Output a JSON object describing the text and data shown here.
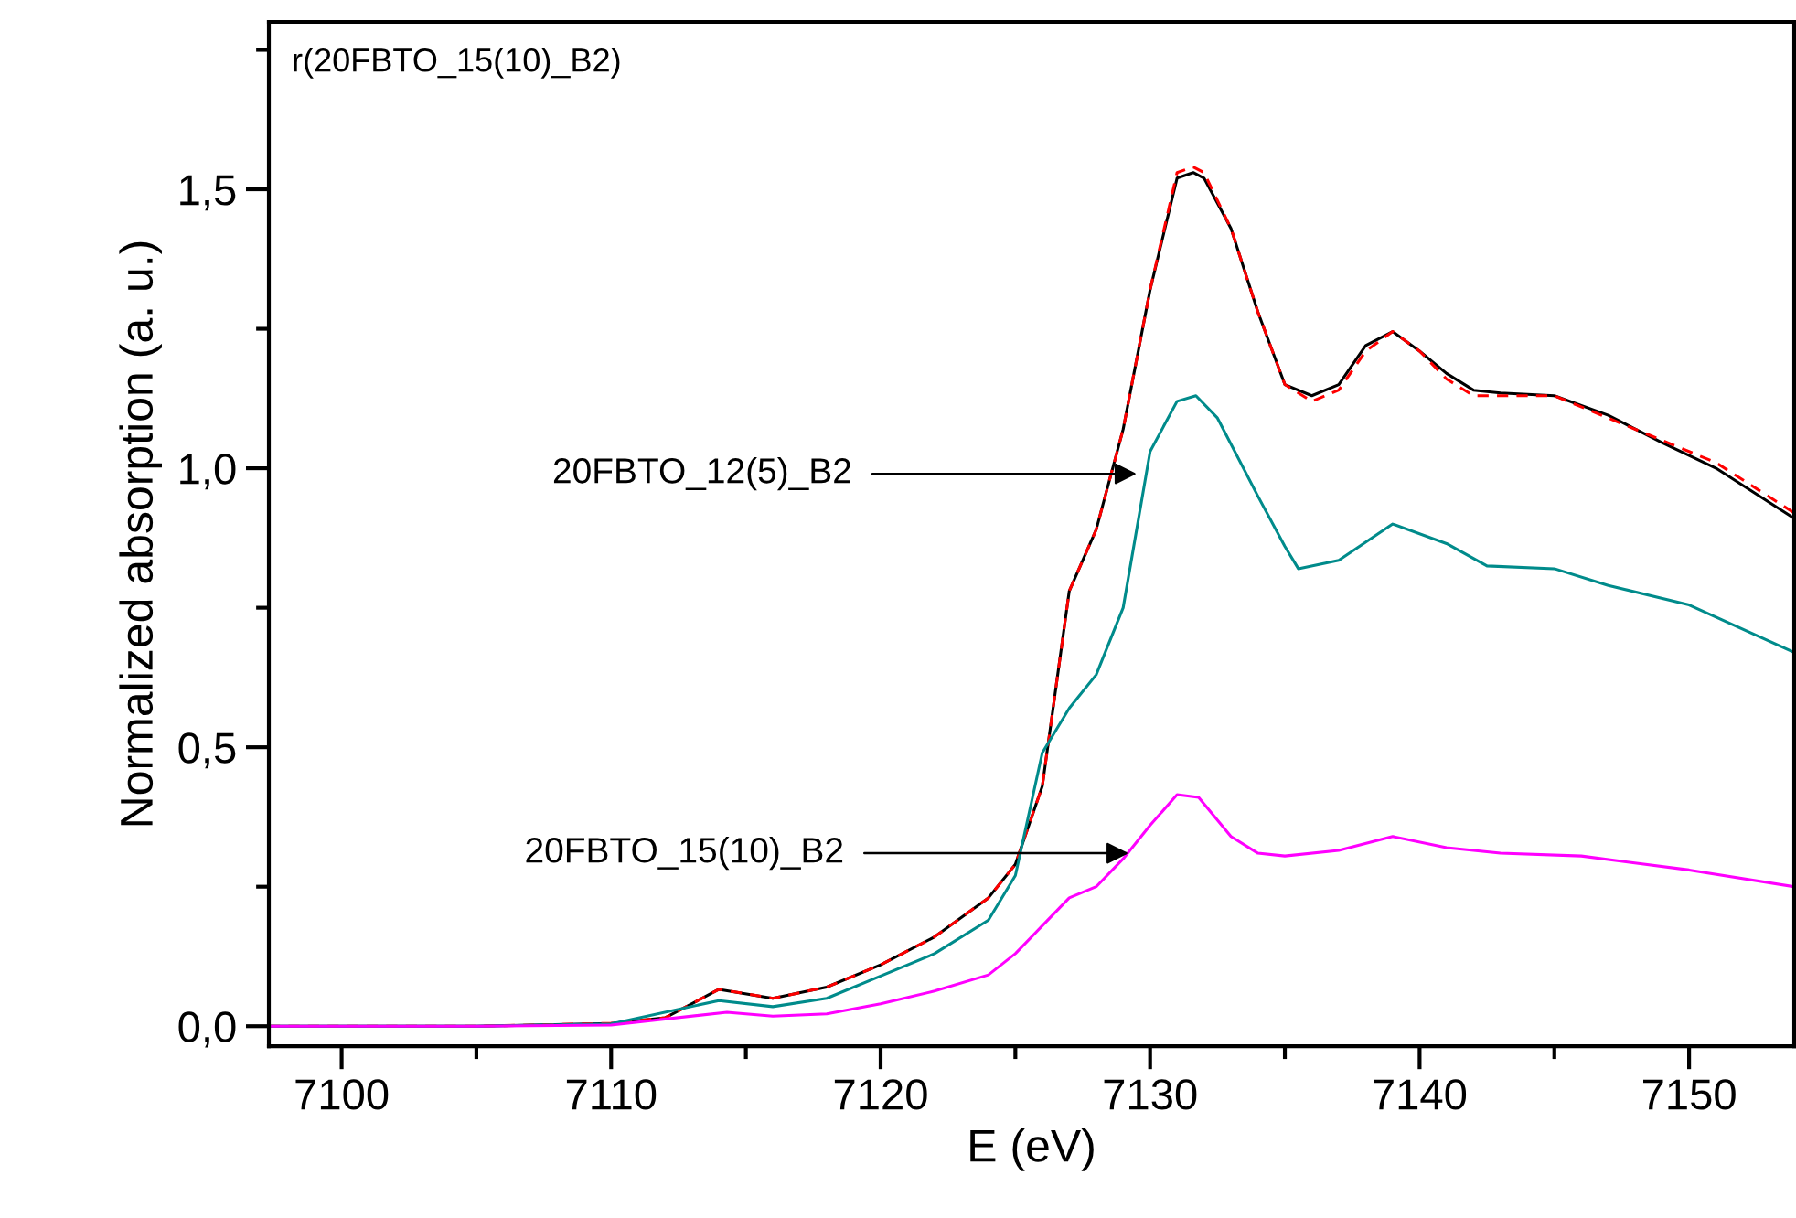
{
  "chart_data": {
    "type": "line",
    "xlabel": "E (eV)",
    "ylabel": "Normalized absorption (a. u.)",
    "xlim": [
      7097.3,
      7153.9
    ],
    "ylim": [
      -0.036,
      1.8
    ],
    "xticks": [
      7100,
      {
        "value": 7105,
        "label": null
      },
      7110,
      {
        "value": 7115,
        "label": null
      },
      7120,
      {
        "value": 7125,
        "label": null
      },
      7130,
      {
        "value": 7135,
        "label": null
      },
      7140,
      {
        "value": 7145,
        "label": null
      },
      7150
    ],
    "yticks": [
      {
        "value": 0,
        "label": "0,0"
      },
      {
        "value": 0.25,
        "label": null
      },
      {
        "value": 0.5,
        "label": "0,5"
      },
      {
        "value": 0.75,
        "label": null
      },
      {
        "value": 1.0,
        "label": "1,0"
      },
      {
        "value": 1.25,
        "label": null
      },
      {
        "value": 1.5,
        "label": "1,5"
      },
      {
        "value": 1.75,
        "label": null
      }
    ],
    "grid": false,
    "legend": false,
    "marker": "none",
    "series": [
      {
        "color": "#000000",
        "line_style": "solid",
        "x": [
          7097.3,
          7105,
          7110,
          7112,
          7114,
          7116,
          7118,
          7120,
          7122,
          7124,
          7125,
          7126,
          7127,
          7128,
          7129,
          7130,
          7131,
          7131.6,
          7132,
          7133,
          7134,
          7135,
          7136,
          7137,
          7138,
          7139,
          7140,
          7141,
          7142,
          7143,
          7145,
          7147,
          7149,
          7151,
          7153.9
        ],
        "values": [
          0.0,
          0.0,
          0.005,
          0.015,
          0.066,
          0.05,
          0.07,
          0.11,
          0.16,
          0.23,
          0.29,
          0.43,
          0.78,
          0.89,
          1.07,
          1.32,
          1.52,
          1.53,
          1.52,
          1.43,
          1.28,
          1.15,
          1.13,
          1.15,
          1.22,
          1.245,
          1.21,
          1.17,
          1.14,
          1.135,
          1.13,
          1.095,
          1.046,
          1.0,
          0.91
        ]
      },
      {
        "color": "#ff0000",
        "line_style": "dashed",
        "x": [
          7097.3,
          7105,
          7110,
          7112,
          7114,
          7116,
          7118,
          7120,
          7122,
          7124,
          7125,
          7126,
          7127,
          7128,
          7129,
          7130,
          7131,
          7131.6,
          7132,
          7133,
          7134,
          7135,
          7136,
          7137,
          7138,
          7139,
          7140,
          7141,
          7142,
          7143,
          7145,
          7147,
          7149,
          7151,
          7153.9
        ],
        "values": [
          0.0,
          0.0,
          0.005,
          0.015,
          0.066,
          0.05,
          0.07,
          0.11,
          0.16,
          0.23,
          0.29,
          0.43,
          0.78,
          0.89,
          1.07,
          1.32,
          1.53,
          1.54,
          1.53,
          1.43,
          1.28,
          1.15,
          1.12,
          1.14,
          1.21,
          1.245,
          1.21,
          1.16,
          1.13,
          1.13,
          1.13,
          1.09,
          1.05,
          1.01,
          0.92
        ]
      },
      {
        "color": "#008b8b",
        "line_style": "solid",
        "x": [
          7097.3,
          7105,
          7110,
          7114,
          7116,
          7118,
          7120,
          7122,
          7124,
          7125,
          7126,
          7127,
          7128,
          7129,
          7130,
          7131,
          7131.7,
          7132.5,
          7134,
          7135,
          7135.5,
          7137,
          7139,
          7141,
          7142.5,
          7145,
          7147,
          7150,
          7153.9
        ],
        "values": [
          0.0,
          0.0,
          0.004,
          0.046,
          0.035,
          0.05,
          0.09,
          0.13,
          0.19,
          0.27,
          0.49,
          0.57,
          0.63,
          0.75,
          1.03,
          1.12,
          1.13,
          1.09,
          0.95,
          0.86,
          0.82,
          0.835,
          0.9,
          0.865,
          0.825,
          0.82,
          0.79,
          0.755,
          0.67
        ]
      },
      {
        "color": "#ff00ff",
        "line_style": "solid",
        "x": [
          7097.3,
          7105,
          7110,
          7114.3,
          7116,
          7118,
          7120,
          7122,
          7124,
          7125,
          7126,
          7127,
          7128,
          7129,
          7130,
          7131,
          7131.8,
          7133,
          7134,
          7135,
          7137,
          7139,
          7141,
          7143,
          7146,
          7150,
          7153.9
        ],
        "values": [
          0.0,
          0.0,
          0.002,
          0.025,
          0.018,
          0.022,
          0.04,
          0.063,
          0.092,
          0.13,
          0.18,
          0.23,
          0.25,
          0.3,
          0.36,
          0.415,
          0.41,
          0.34,
          0.31,
          0.305,
          0.315,
          0.34,
          0.32,
          0.31,
          0.305,
          0.28,
          0.25
        ]
      }
    ],
    "annotations": [
      "r(20FBTO_15(10)_B2)",
      {
        "text": "20FBTO_12(5)_B2",
        "x": 7129.5,
        "y": 0.99
      },
      {
        "text": "20FBTO_15(10)_B2",
        "x": 7129.2,
        "y": 0.31
      }
    ]
  }
}
